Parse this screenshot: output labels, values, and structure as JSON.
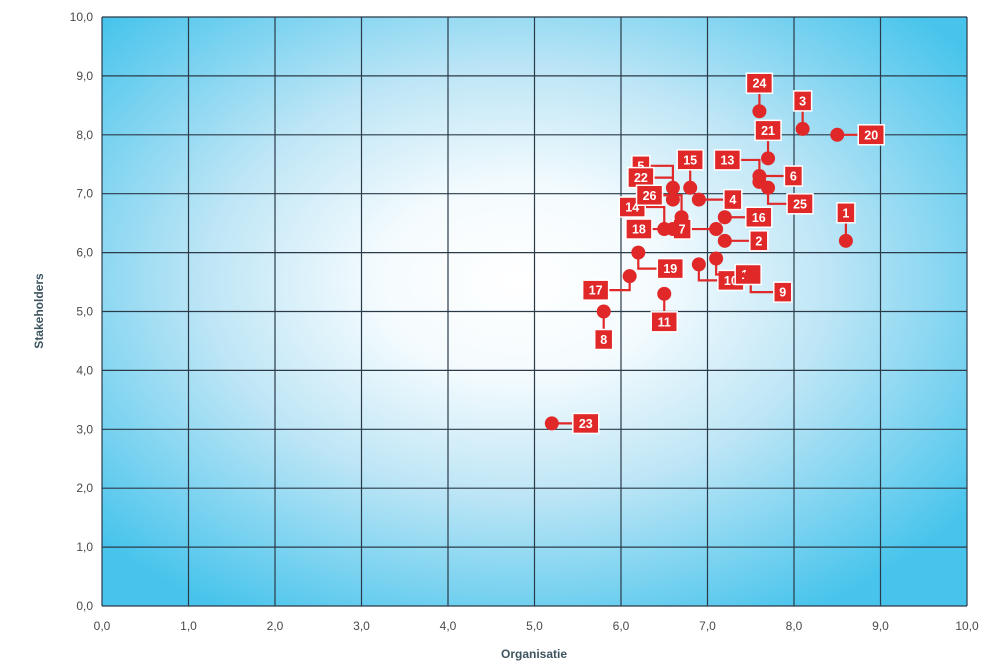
{
  "chart_data": {
    "type": "scatter",
    "xlabel": "Organisatie",
    "ylabel": "Stakeholders",
    "xlim": [
      0,
      10
    ],
    "ylim": [
      0,
      10
    ],
    "x_ticks": [
      "0,0",
      "1,0",
      "2,0",
      "3,0",
      "4,0",
      "5,0",
      "6,0",
      "7,0",
      "8,0",
      "9,0",
      "10,0"
    ],
    "y_ticks": [
      "0,0",
      "1,0",
      "2,0",
      "3,0",
      "4,0",
      "5,0",
      "6,0",
      "7,0",
      "8,0",
      "9,0",
      "10,0"
    ],
    "grid": true,
    "colors": {
      "point": "#e02828",
      "label_bg": "#e02828",
      "label_border": "#ffffff",
      "grid": "#2a3a48",
      "plot_bg_center": "#ffffff",
      "plot_bg_edge": "#48c4ec"
    },
    "points": [
      {
        "label": "1",
        "x": 8.6,
        "y": 6.2,
        "label_pos": "top"
      },
      {
        "label": "2",
        "x": 7.2,
        "y": 6.2,
        "label_pos": "right"
      },
      {
        "label": "3",
        "x": 8.1,
        "y": 8.1,
        "label_pos": "top"
      },
      {
        "label": "4",
        "x": 6.9,
        "y": 6.9,
        "label_pos": "right"
      },
      {
        "label": "5",
        "x": 6.6,
        "y": 7.1,
        "label_pos": "upper-left"
      },
      {
        "label": "6",
        "x": 7.6,
        "y": 7.3,
        "label_pos": "right"
      },
      {
        "label": "7",
        "x": 7.1,
        "y": 6.4,
        "label_pos": "left"
      },
      {
        "label": "8",
        "x": 5.8,
        "y": 5.0,
        "label_pos": "bottom"
      },
      {
        "label": "9",
        "x": 7.5,
        "y": 5.6,
        "label_pos": "lower-right"
      },
      {
        "label": "10",
        "x": 6.9,
        "y": 5.8,
        "label_pos": "lower-right"
      },
      {
        "label": "11",
        "x": 6.5,
        "y": 5.3,
        "label_pos": "bottom"
      },
      {
        "label": "12",
        "x": 7.1,
        "y": 5.9,
        "label_pos": "lower-right"
      },
      {
        "label": "13",
        "x": 7.6,
        "y": 7.2,
        "label_pos": "upper-left"
      },
      {
        "label": "14",
        "x": 6.5,
        "y": 6.4,
        "label_pos": "upper-left"
      },
      {
        "label": "15",
        "x": 6.8,
        "y": 7.1,
        "label_pos": "top"
      },
      {
        "label": "16",
        "x": 7.2,
        "y": 6.6,
        "label_pos": "right"
      },
      {
        "label": "17",
        "x": 6.1,
        "y": 5.6,
        "label_pos": "lower-left"
      },
      {
        "label": "18",
        "x": 6.6,
        "y": 6.4,
        "label_pos": "left"
      },
      {
        "label": "19",
        "x": 6.2,
        "y": 6.0,
        "label_pos": "lower-right"
      },
      {
        "label": "20",
        "x": 8.5,
        "y": 8.0,
        "label_pos": "right"
      },
      {
        "label": "21",
        "x": 7.7,
        "y": 7.6,
        "label_pos": "top"
      },
      {
        "label": "22",
        "x": 6.6,
        "y": 6.9,
        "label_pos": "upper-left"
      },
      {
        "label": "23",
        "x": 5.2,
        "y": 3.1,
        "label_pos": "right"
      },
      {
        "label": "24",
        "x": 7.6,
        "y": 8.4,
        "label_pos": "top"
      },
      {
        "label": "25",
        "x": 7.7,
        "y": 7.1,
        "label_pos": "lower-right"
      },
      {
        "label": "26",
        "x": 6.7,
        "y": 6.6,
        "label_pos": "upper-left"
      }
    ]
  }
}
